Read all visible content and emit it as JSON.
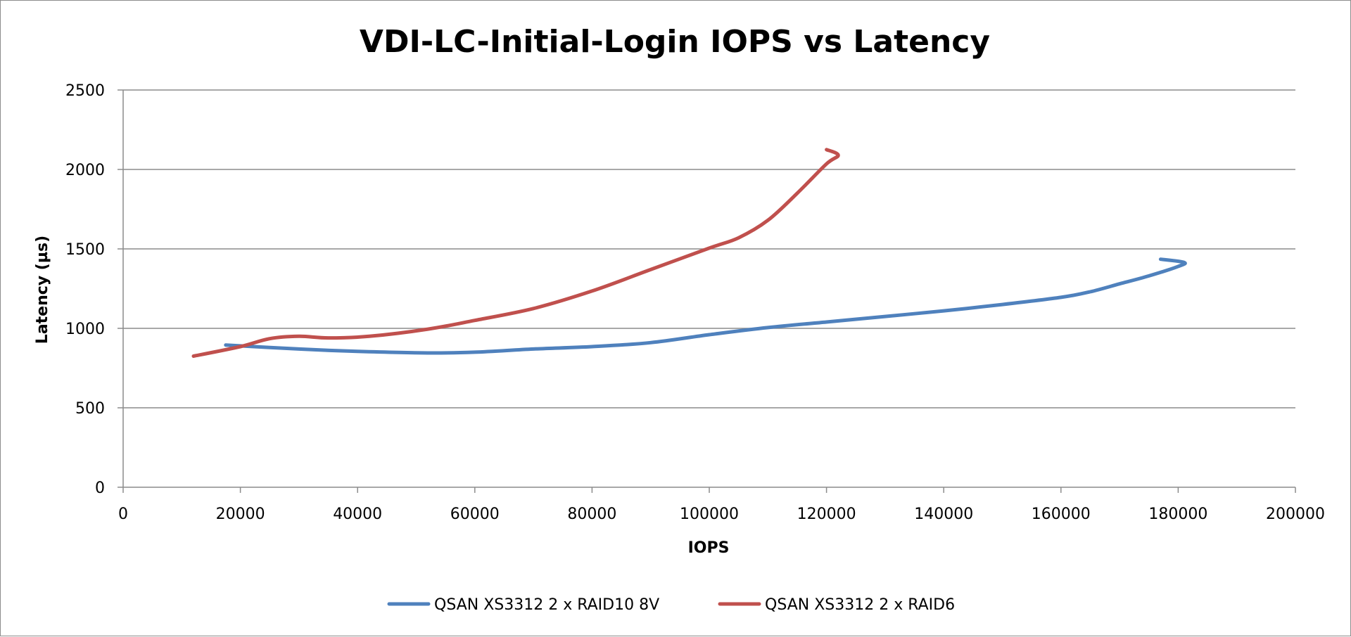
{
  "chart_data": {
    "type": "line",
    "title": "VDI-LC-Initial-Login IOPS vs Latency",
    "xlabel": "IOPS",
    "ylabel": "Latency (µs)",
    "xlim": [
      0,
      200000
    ],
    "ylim": [
      0,
      2500
    ],
    "xticks": [
      0,
      20000,
      40000,
      60000,
      80000,
      100000,
      120000,
      140000,
      160000,
      180000,
      200000
    ],
    "yticks": [
      0,
      500,
      1000,
      1500,
      2000,
      2500
    ],
    "grid": true,
    "legend": "bottom",
    "series": [
      {
        "name": "QSAN XS3312 2 x RAID10 8V",
        "color": "#4f81bd",
        "points": [
          [
            17500,
            895
          ],
          [
            30000,
            870
          ],
          [
            40000,
            855
          ],
          [
            52000,
            845
          ],
          [
            60000,
            850
          ],
          [
            70000,
            870
          ],
          [
            80000,
            885
          ],
          [
            90000,
            910
          ],
          [
            100000,
            960
          ],
          [
            110000,
            1005
          ],
          [
            120000,
            1040
          ],
          [
            130000,
            1075
          ],
          [
            140000,
            1110
          ],
          [
            150000,
            1150
          ],
          [
            160000,
            1195
          ],
          [
            165000,
            1230
          ],
          [
            170000,
            1280
          ],
          [
            175000,
            1330
          ],
          [
            180000,
            1390
          ],
          [
            181000,
            1415
          ],
          [
            177000,
            1435
          ]
        ]
      },
      {
        "name": "QSAN XS3312 2 x RAID6",
        "color": "#c0504d",
        "points": [
          [
            12000,
            825
          ],
          [
            20000,
            885
          ],
          [
            25000,
            935
          ],
          [
            30000,
            950
          ],
          [
            35000,
            940
          ],
          [
            42000,
            950
          ],
          [
            52000,
            995
          ],
          [
            60000,
            1050
          ],
          [
            70000,
            1125
          ],
          [
            80000,
            1235
          ],
          [
            90000,
            1370
          ],
          [
            100000,
            1505
          ],
          [
            105000,
            1570
          ],
          [
            110000,
            1680
          ],
          [
            115000,
            1850
          ],
          [
            120000,
            2035
          ],
          [
            122000,
            2090
          ],
          [
            120000,
            2125
          ]
        ]
      }
    ]
  }
}
